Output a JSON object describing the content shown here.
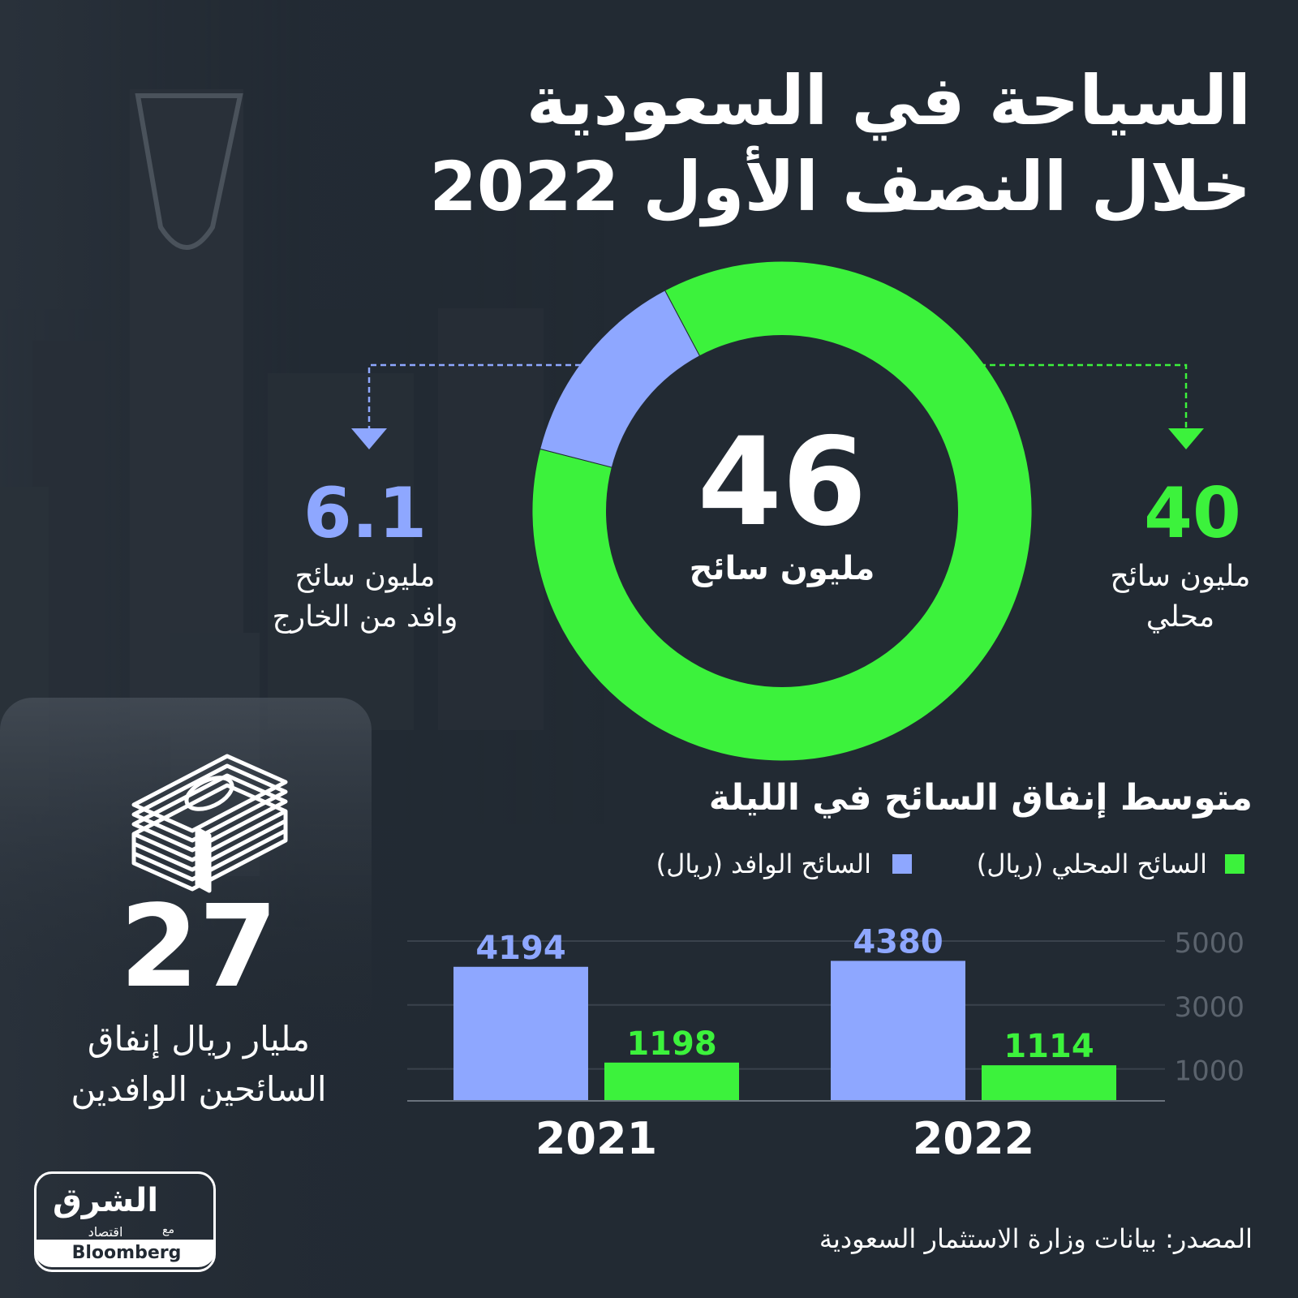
{
  "header": {
    "title_line1": "السياحة في السعودية",
    "title_line2": "خلال النصف الأول 2022"
  },
  "donut": {
    "total_value": "46",
    "total_label": "مليون سائح",
    "local": {
      "value": "40",
      "line1": "مليون سائح",
      "line2": "محلي",
      "color": "#3cf23c"
    },
    "foreign": {
      "value": "6.1",
      "line1": "مليون سائح",
      "line2": "وافد من الخارج",
      "color": "#8ea7ff"
    }
  },
  "spending": {
    "value": "27",
    "line1": "مليار ريال إنفاق",
    "line2": "السائحين الوافدين"
  },
  "icons": {
    "money": "money-stack-icon"
  },
  "chart_data": [
    {
      "type": "pie",
      "title": "",
      "categories": [
        "محلي",
        "وافد من الخارج"
      ],
      "values": [
        40,
        6.1
      ],
      "unit": "مليون سائح",
      "colors": [
        "#3cf23c",
        "#8ea7ff"
      ]
    },
    {
      "type": "bar",
      "title": "متوسط إنفاق السائح في الليلة",
      "categories": [
        "2021",
        "2022"
      ],
      "series": [
        {
          "name": "السائح الوافد (ريال)",
          "values": [
            4194,
            4380
          ],
          "color": "#8ea7ff"
        },
        {
          "name": "السائح المحلي (ريال)",
          "values": [
            1198,
            1114
          ],
          "color": "#3cf23c"
        }
      ],
      "yticks": [
        1000,
        3000,
        5000
      ],
      "ylim": [
        0,
        5000
      ],
      "grid": true,
      "legend": "top"
    }
  ],
  "footer": {
    "source": "المصدر: بيانات وزارة الاستثمار السعودية",
    "logo_name": "الشرق",
    "logo_sub": "اقتصاد",
    "logo_with": "مع",
    "logo_brand": "Bloomberg"
  }
}
